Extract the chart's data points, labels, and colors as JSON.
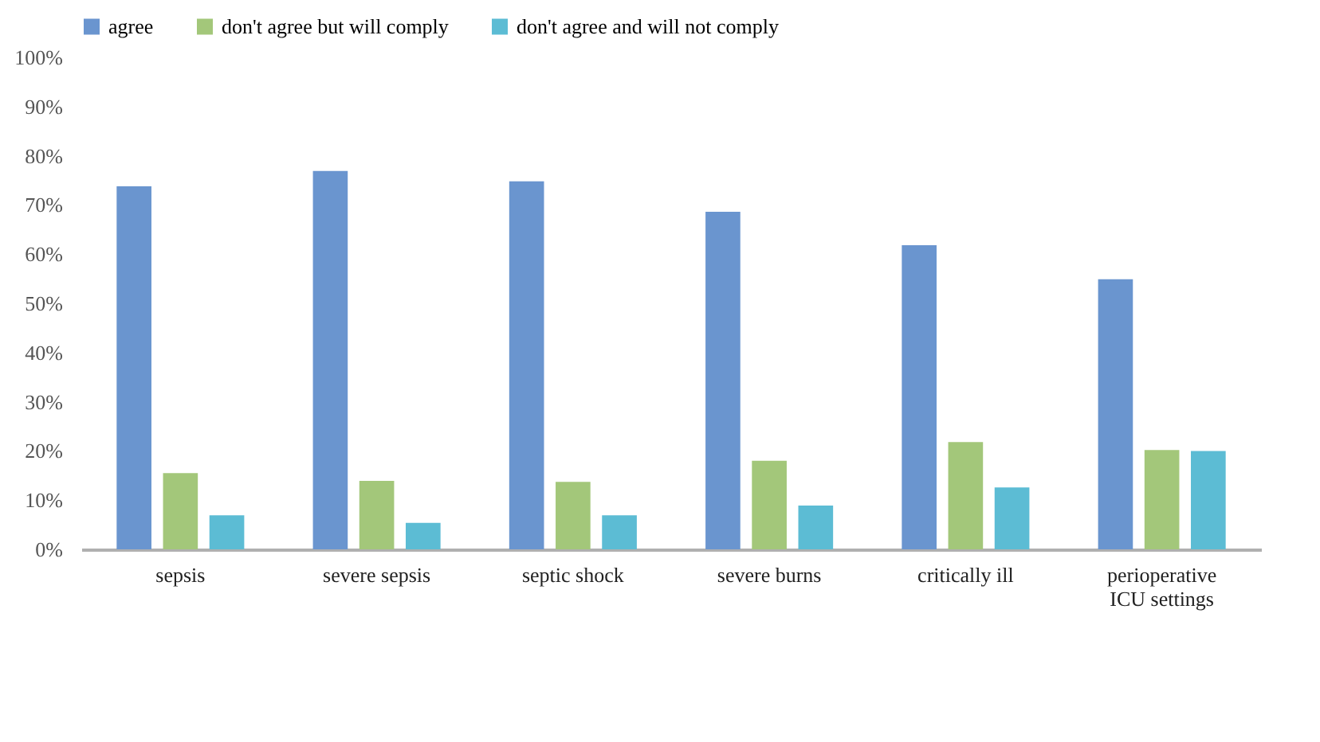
{
  "chart_data": {
    "type": "bar",
    "categories": [
      "sepsis",
      "severe sepsis",
      "septic shock",
      "severe burns",
      "critically ill",
      "perioperative ICU settings"
    ],
    "series": [
      {
        "name": "agree",
        "color": "#6a95cf",
        "values": [
          73.8,
          76.9,
          74.8,
          68.6,
          61.8,
          54.9
        ]
      },
      {
        "name": "don't agree but will comply",
        "color": "#a3c77a",
        "values": [
          15.5,
          13.9,
          13.7,
          18.0,
          21.8,
          20.2
        ]
      },
      {
        "name": "don't agree and will not comply",
        "color": "#5cbcd4",
        "values": [
          6.9,
          5.4,
          6.9,
          8.9,
          12.6,
          20.0
        ]
      }
    ],
    "ylim": [
      0,
      100
    ],
    "yticks": [
      {
        "value": 0,
        "label": "0%"
      },
      {
        "value": 10,
        "label": "10%"
      },
      {
        "value": 20,
        "label": "20%"
      },
      {
        "value": 30,
        "label": "30%"
      },
      {
        "value": 40,
        "label": "40%"
      },
      {
        "value": 50,
        "label": "50%"
      },
      {
        "value": 60,
        "label": "60%"
      },
      {
        "value": 70,
        "label": "70%"
      },
      {
        "value": 80,
        "label": "80%"
      },
      {
        "value": 90,
        "label": "90%"
      },
      {
        "value": 100,
        "label": "100%"
      }
    ],
    "grid": false,
    "legend": "top"
  }
}
